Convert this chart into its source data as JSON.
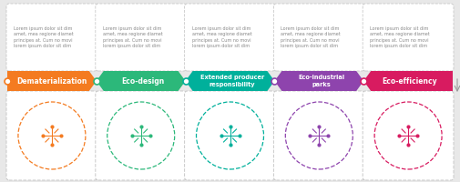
{
  "background_color": "#e8e8e8",
  "white": "#ffffff",
  "steps": [
    {
      "label": "Dematerialization",
      "label2": "",
      "color": "#f47b20",
      "dot_color": "#f47b20",
      "icon_color": "#f47b20"
    },
    {
      "label": "Eco-design",
      "label2": "",
      "color": "#2cb87a",
      "dot_color": "#2cb87a",
      "icon_color": "#2cb87a"
    },
    {
      "label": "Extended producer\nresponsibility",
      "label2": "",
      "color": "#00b09b",
      "dot_color": "#00b09b",
      "icon_color": "#00b09b"
    },
    {
      "label": "Eco-industrial\nparks",
      "label2": "",
      "color": "#8e44ad",
      "dot_color": "#8e44ad",
      "icon_color": "#8e44ad"
    },
    {
      "label": "Eco-efficiency",
      "label2": "",
      "color": "#d81b60",
      "dot_color": "#d81b60",
      "icon_color": "#d81b60"
    }
  ],
  "lorem_text": "Lorem ipsum dolor sit dim\namet, mea regione diamet\nprincipes at. Cum no movi\nlorem ipsum dolor sit dim",
  "card_border": "#c8c8c8",
  "text_color": "#888888",
  "dot_border": "#dddddd"
}
